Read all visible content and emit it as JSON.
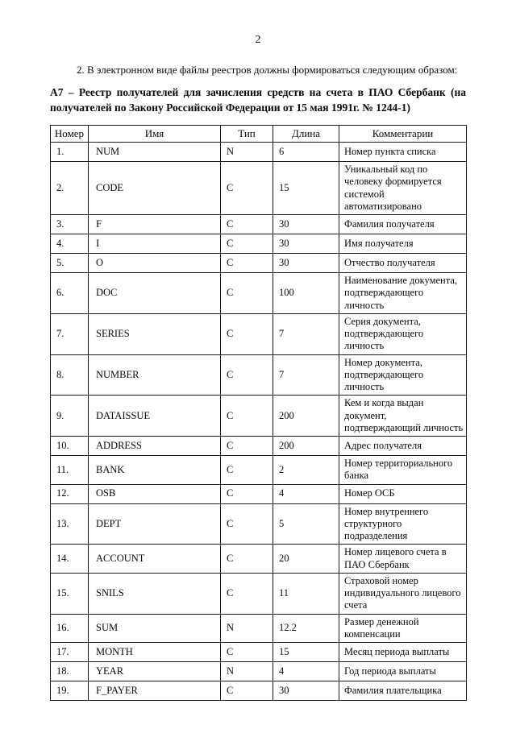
{
  "colors": {
    "paper": "#ffffff",
    "text": "#0a0a0a",
    "table_border": "#1c1c1c"
  },
  "page": {
    "number": "2",
    "intro_paragraph": "2. В электронном виде файлы реестров должны формироваться следующим образом:",
    "section_heading": "А7 – Реестр получателей для зачисления средств на счета в ПАО Сбербанк (на получателей по Закону Российской Федерации от 15 мая 1991г. № 1244-1)"
  },
  "table": {
    "columns": [
      "Номер",
      "Имя",
      "Тип",
      "Длина",
      "Комментарии"
    ],
    "rows": [
      [
        "1.",
        "NUM",
        "N",
        "6",
        "Номер пункта списка"
      ],
      [
        "2.",
        "CODE",
        "C",
        "15",
        "Уникальный код по человеку формируется системой автоматизировано"
      ],
      [
        "3.",
        "F",
        "C",
        "30",
        "Фамилия получателя"
      ],
      [
        "4.",
        "I",
        "C",
        "30",
        "Имя получателя"
      ],
      [
        "5.",
        "O",
        "C",
        "30",
        "Отчество получателя"
      ],
      [
        "6.",
        "DOC",
        "C",
        "100",
        "Наименование документа, подтверждающего личность"
      ],
      [
        "7.",
        "SERIES",
        "C",
        "7",
        "Серия документа, подтверждающего личность"
      ],
      [
        "8.",
        "NUMBER",
        "C",
        "7",
        "Номер документа, подтверждающего личность"
      ],
      [
        "9.",
        "DATAISSUE",
        "C",
        "200",
        "Кем и когда выдан документ, подтверждающий личность"
      ],
      [
        "10.",
        "ADDRESS",
        "C",
        "200",
        "Адрес получателя"
      ],
      [
        "11.",
        "BANK",
        "C",
        "2",
        "Номер территориального банка"
      ],
      [
        "12.",
        "OSB",
        "C",
        "4",
        "Номер ОСБ"
      ],
      [
        "13.",
        "DEPT",
        "C",
        "5",
        "Номер внутреннего структурного подразделения"
      ],
      [
        "14.",
        "ACCOUNT",
        "C",
        "20",
        "Номер лицевого счета в ПАО Сбербанк"
      ],
      [
        "15.",
        "SNILS",
        "C",
        "11",
        "Страховой номер индивидуального лицевого счета"
      ],
      [
        "16.",
        "SUM",
        "N",
        "12.2",
        "Размер денежной компенсации"
      ],
      [
        "17.",
        "MONTH",
        "C",
        "15",
        "Месяц периода выплаты"
      ],
      [
        "18.",
        "YEAR",
        "N",
        "4",
        "Год периода выплаты"
      ],
      [
        "19.",
        "F_PAYER",
        "C",
        "30",
        "Фамилия плательщика"
      ]
    ]
  }
}
